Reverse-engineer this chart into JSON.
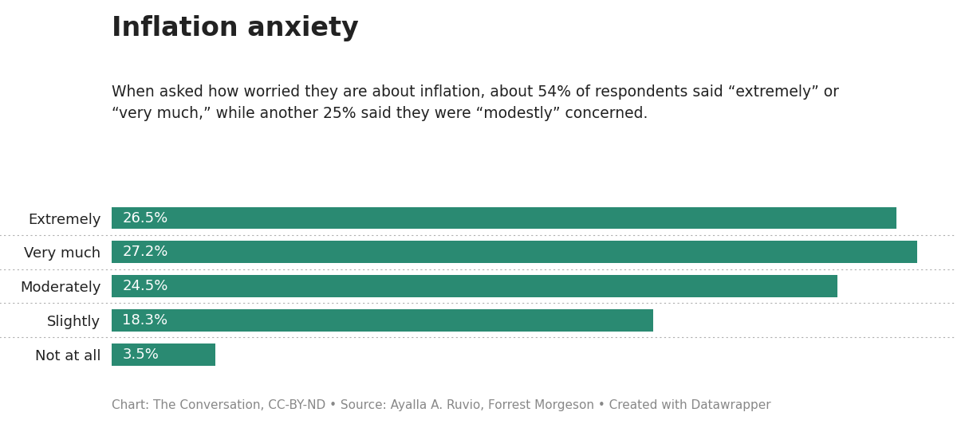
{
  "title": "Inflation anxiety",
  "subtitle": "When asked how worried they are about inflation, about 54% of respondents said “extremely” or\n“very much,” while another 25% said they were “modestly” concerned.",
  "caption": "Chart: The Conversation, CC-BY-ND • Source: Ayalla A. Ruvio, Forrest Morgeson • Created with Datawrapper",
  "categories": [
    "Extremely",
    "Very much",
    "Moderately",
    "Slightly",
    "Not at all"
  ],
  "values": [
    26.5,
    27.2,
    24.5,
    18.3,
    3.5
  ],
  "bar_color": "#2a8a72",
  "label_color": "#ffffff",
  "background_color": "#ffffff",
  "text_color": "#222222",
  "caption_color": "#888888",
  "title_fontsize": 24,
  "subtitle_fontsize": 13.5,
  "label_fontsize": 13,
  "category_fontsize": 13,
  "caption_fontsize": 11,
  "xlim_max": 28.5,
  "bar_height": 0.65,
  "separator_color": "#b0b0b0"
}
